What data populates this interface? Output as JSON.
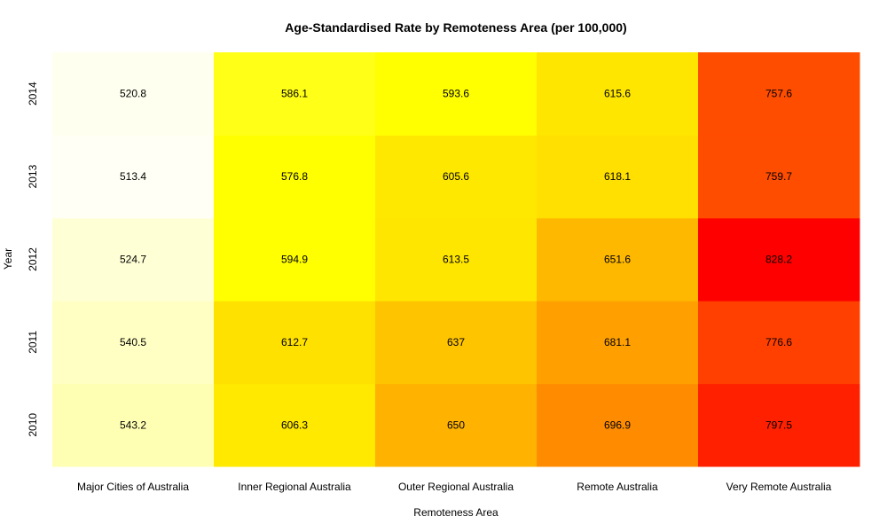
{
  "chart_data": {
    "type": "heatmap",
    "title": "Age-Standardised Rate by Remoteness Area (per 100,000)",
    "xlabel": "Remoteness Area",
    "ylabel": "Year",
    "x_categories": [
      "Major Cities of Australia",
      "Inner Regional Australia",
      "Outer Regional Australia",
      "Remote Australia",
      "Very Remote Australia"
    ],
    "y_categories": [
      "2010",
      "2011",
      "2012",
      "2013",
      "2014"
    ],
    "values": [
      [
        "543.2",
        "606.3",
        "650",
        "696.9",
        "797.5"
      ],
      [
        "540.5",
        "612.7",
        "637",
        "681.1",
        "776.6"
      ],
      [
        "524.7",
        "594.9",
        "613.5",
        "651.6",
        "828.2"
      ],
      [
        "513.4",
        "576.8",
        "605.6",
        "618.1",
        "759.7"
      ],
      [
        "520.8",
        "586.1",
        "593.6",
        "615.6",
        "757.6"
      ]
    ],
    "colors": [
      [
        "#ffffb3",
        "#ffe900",
        "#ffb200",
        "#ff8c00",
        "#ff2000"
      ],
      [
        "#ffffc4",
        "#ffe100",
        "#ffc400",
        "#ffa000",
        "#ff4000"
      ],
      [
        "#ffffd6",
        "#ffff00",
        "#ffe600",
        "#ffb800",
        "#ff0000"
      ],
      [
        "#fffff5",
        "#ffff00",
        "#ffe800",
        "#ffe000",
        "#ff4d00"
      ],
      [
        "#fffff0",
        "#ffff18",
        "#ffff00",
        "#ffe600",
        "#ff4d00"
      ]
    ],
    "color_scale": [
      "#ffffff",
      "#ffff00",
      "#ffa500",
      "#ff0000"
    ],
    "legend": "none",
    "grid": false
  }
}
